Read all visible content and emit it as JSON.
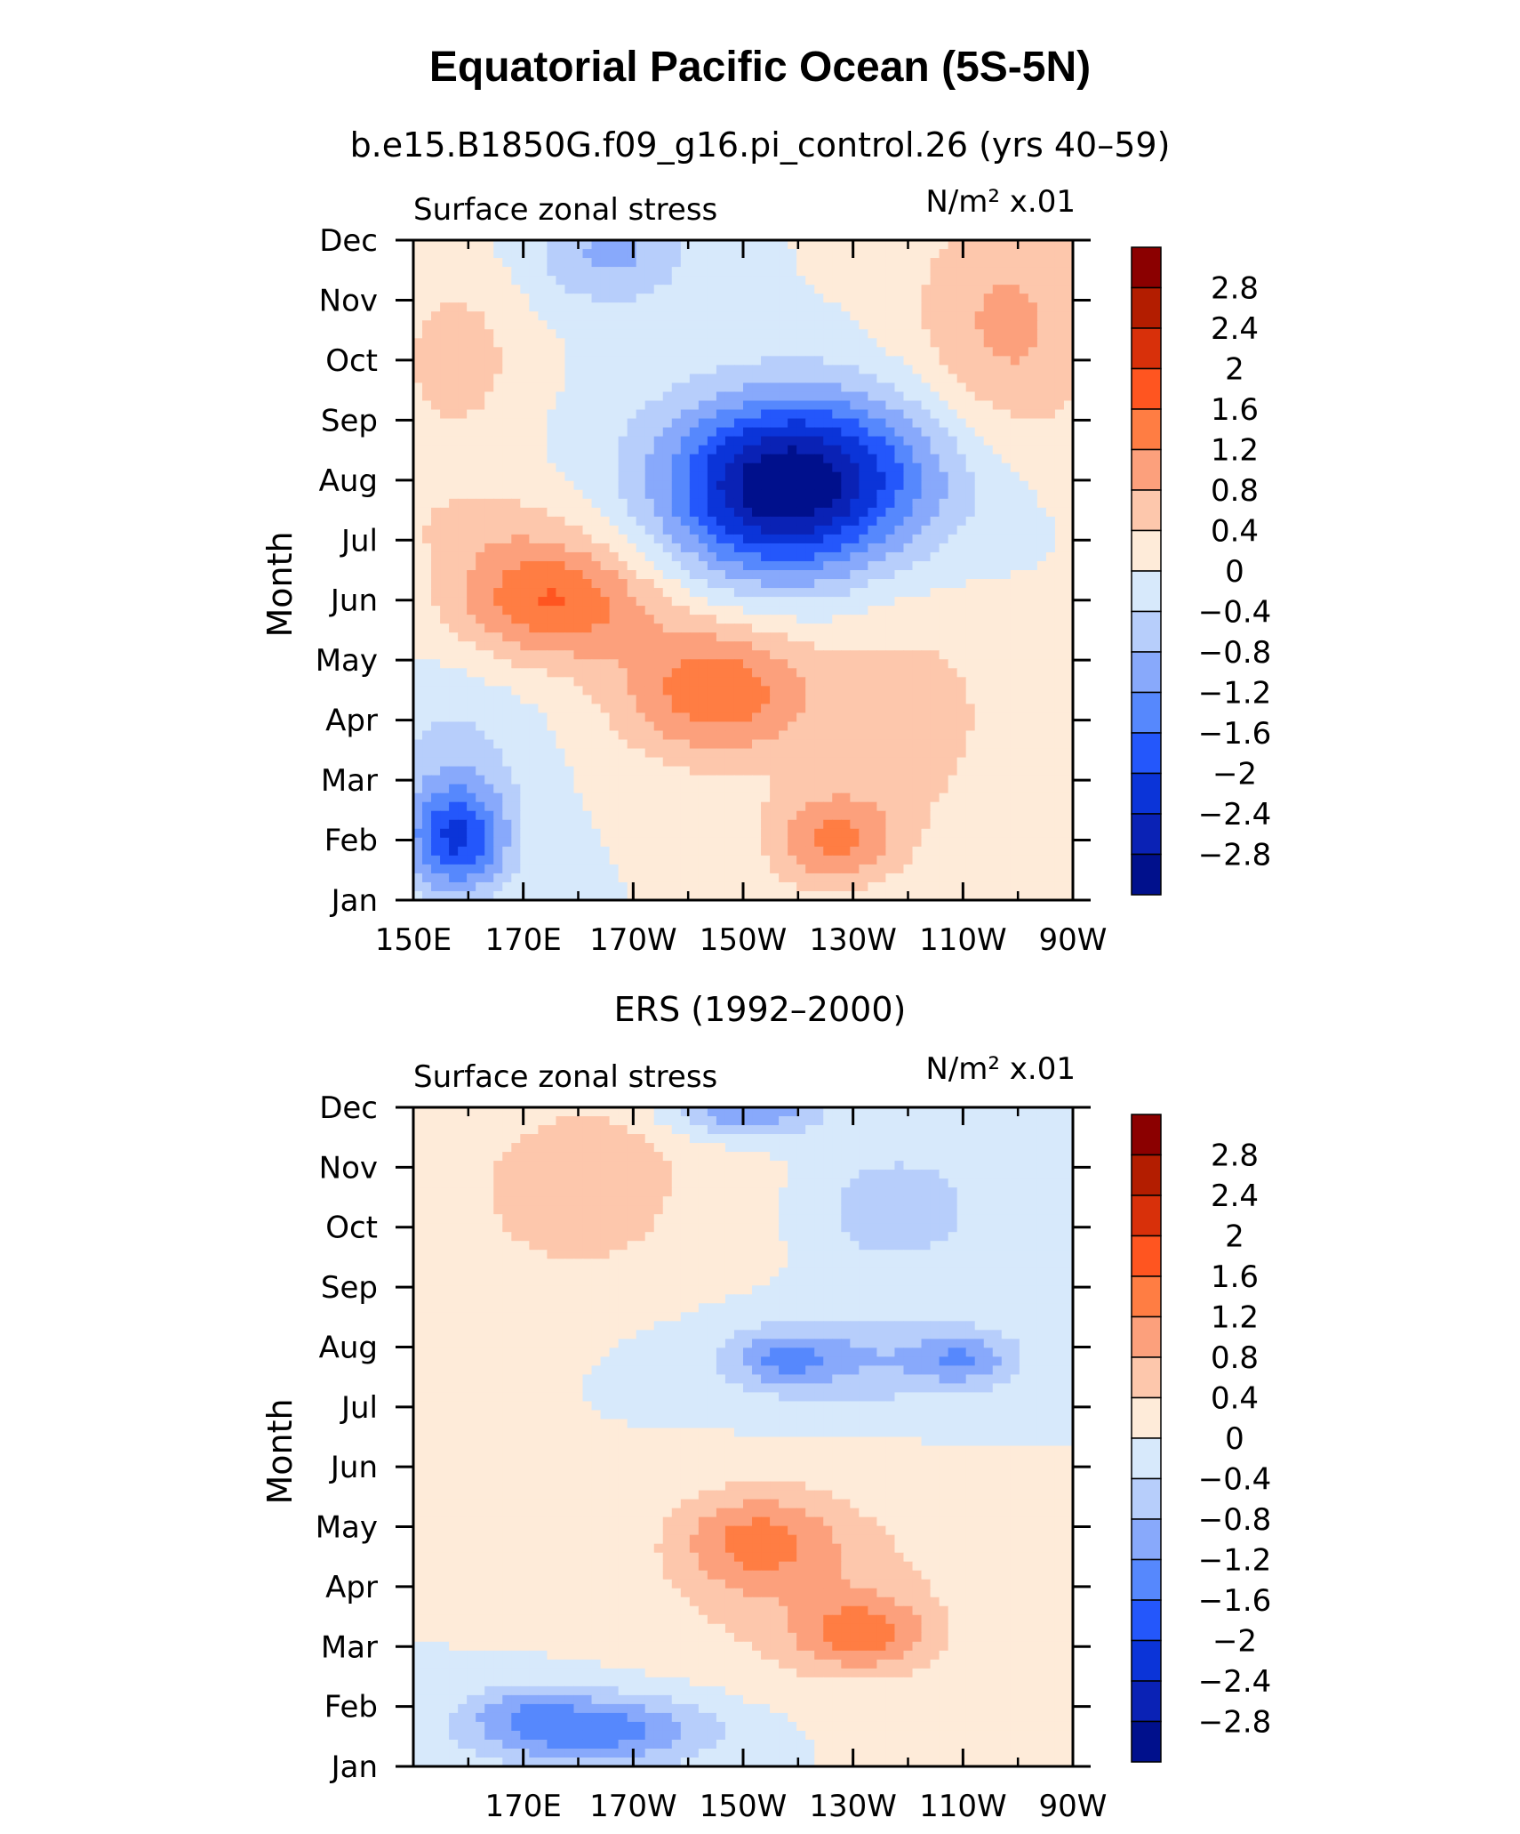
{
  "page_title": "Equatorial Pacific Ocean (5S-5N)",
  "colorbar": {
    "labels": [
      "2.8",
      "2.4",
      "2",
      "1.6",
      "1.2",
      "0.8",
      "0.4",
      "0",
      "−0.4",
      "−0.8",
      "−1.2",
      "−1.6",
      "−2",
      "−2.4",
      "−2.8"
    ],
    "colors": [
      "#8b0000",
      "#b31d00",
      "#d8300a",
      "#ff5520",
      "#ff7d43",
      "#fca07c",
      "#fdc7ac",
      "#feebd9",
      "#d7e9fb",
      "#b7cefb",
      "#88a9fb",
      "#5688fd",
      "#2457fb",
      "#0b34d8",
      "#0a22b5",
      "#00108c"
    ]
  },
  "chart_data": [
    {
      "type": "heatmap",
      "title": "b.e15.B1850G.f09_g16.pi_control.26 (yrs 40–59)",
      "left_label": "Surface zonal stress",
      "right_label": "N/m² x.01",
      "xlabel": "",
      "ylabel": "Month",
      "xlim": [
        150,
        270
      ],
      "x_ticks": [
        150,
        170,
        190,
        210,
        230,
        250,
        270
      ],
      "x_tick_labels": [
        "150E",
        "170E",
        "170W",
        "150W",
        "130W",
        "110W",
        "90W"
      ],
      "y_ticks": [
        "Jan",
        "Feb",
        "Mar",
        "Apr",
        "May",
        "Jun",
        "Jul",
        "Aug",
        "Sep",
        "Oct",
        "Nov",
        "Dec"
      ],
      "levels": [
        -2.8,
        -2.4,
        -2,
        -1.6,
        -1.2,
        -0.8,
        -0.4,
        0,
        0.4,
        0.8,
        1.2,
        1.6,
        2,
        2.4,
        2.8
      ],
      "features": [
        {
          "x": 158,
          "m": 1.0,
          "sx": 9,
          "sy": 0.9,
          "a": -1.9
        },
        {
          "x": 157,
          "m": 2.3,
          "sx": 14,
          "sy": 1.5,
          "a": -0.5
        },
        {
          "x": 186,
          "m": 10.8,
          "sx": 14,
          "sy": 0.9,
          "a": -0.9
        },
        {
          "x": 222,
          "m": 7.1,
          "sx": 26,
          "sy": 1.4,
          "a": -2.3
        },
        {
          "x": 215,
          "m": 6.5,
          "sx": 18,
          "sy": 1.5,
          "a": -1.2
        },
        {
          "x": 175,
          "m": 5.0,
          "sx": 18,
          "sy": 1.0,
          "a": 1.6
        },
        {
          "x": 205,
          "m": 3.5,
          "sx": 18,
          "sy": 1.2,
          "a": 1.5
        },
        {
          "x": 226,
          "m": 1.0,
          "sx": 12,
          "sy": 0.8,
          "a": 1.2
        },
        {
          "x": 158,
          "m": 9.0,
          "sx": 12,
          "sy": 1.5,
          "a": 0.6
        },
        {
          "x": 258,
          "m": 9.5,
          "sx": 18,
          "sy": 2.2,
          "a": 0.9
        },
        {
          "x": 240,
          "m": 3.0,
          "sx": 18,
          "sy": 2.0,
          "a": 0.6
        },
        {
          "x": 162,
          "m": 6.3,
          "sx": 20,
          "sy": 0.8,
          "a": 0.4
        }
      ]
    },
    {
      "type": "heatmap",
      "title": "ERS (1992–2000)",
      "left_label": "Surface zonal stress",
      "right_label": "N/m² x.01",
      "xlabel": "",
      "ylabel": "Month",
      "xlim": [
        150,
        270
      ],
      "x_ticks": [
        170,
        190,
        210,
        230,
        250,
        270
      ],
      "x_tick_labels": [
        "170E",
        "170W",
        "150W",
        "130W",
        "110W",
        "90W"
      ],
      "y_ticks": [
        "Jan",
        "Feb",
        "Mar",
        "Apr",
        "May",
        "Jun",
        "Jul",
        "Aug",
        "Sep",
        "Oct",
        "Nov",
        "Dec"
      ],
      "levels": [
        -2.8,
        -2.4,
        -2,
        -1.6,
        -1.2,
        -0.8,
        -0.4,
        0,
        0.4,
        0.8,
        1.2,
        1.6,
        2,
        2.4,
        2.8
      ],
      "features": [
        {
          "x": 182,
          "m": 0.6,
          "sx": 22,
          "sy": 0.6,
          "a": -1.5
        },
        {
          "x": 170,
          "m": 1.0,
          "sx": 10,
          "sy": 0.4,
          "a": -0.5
        },
        {
          "x": 218,
          "m": 6.8,
          "sx": 8,
          "sy": 0.4,
          "a": -0.8
        },
        {
          "x": 250,
          "m": 6.8,
          "sx": 8,
          "sy": 0.4,
          "a": -0.8
        },
        {
          "x": 230,
          "m": 6.8,
          "sx": 30,
          "sy": 0.8,
          "a": -0.8
        },
        {
          "x": 210,
          "m": 11.0,
          "sx": 14,
          "sy": 0.5,
          "a": -1.3
        },
        {
          "x": 238,
          "m": 9.3,
          "sx": 15,
          "sy": 1.0,
          "a": -0.7
        },
        {
          "x": 212,
          "m": 3.8,
          "sx": 14,
          "sy": 0.8,
          "a": 1.0
        },
        {
          "x": 232,
          "m": 2.2,
          "sx": 12,
          "sy": 0.6,
          "a": 1.1
        },
        {
          "x": 222,
          "m": 3.0,
          "sx": 28,
          "sy": 1.6,
          "a": 0.6
        },
        {
          "x": 180,
          "m": 9.6,
          "sx": 28,
          "sy": 2.0,
          "a": 0.55
        },
        {
          "x": 185,
          "m": 10.2,
          "sx": 8,
          "sy": 0.5,
          "a": 0.3
        }
      ]
    }
  ]
}
